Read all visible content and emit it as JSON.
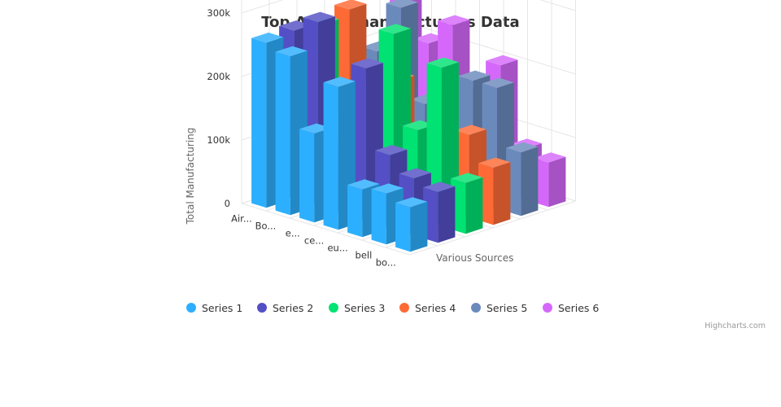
{
  "chart_data": {
    "type": "bar",
    "subtype": "3d-column",
    "title": "Top Airline manufacturers Data",
    "ylabel": "Total Manufacturing",
    "zlabel": "Various Sources",
    "ylim": [
      0,
      300000
    ],
    "yticks": [
      "0",
      "100k",
      "200k",
      "300k"
    ],
    "categories": [
      "Air...",
      "Bo...",
      "e...",
      "ce...",
      "eu...",
      "bell",
      "bo..."
    ],
    "series": [
      {
        "name": "Series 1",
        "color": "#2caffe",
        "values": [
          260000,
          250000,
          140000,
          225000,
          75000,
          80000,
          70000
        ]
      },
      {
        "name": "Series 2",
        "color": "#544fc5",
        "values": [
          265000,
          290000,
          105000,
          240000,
          115000,
          90000,
          80000
        ]
      },
      {
        "name": "Series 3",
        "color": "#00e272",
        "values": [
          260000,
          120000,
          180000,
          280000,
          140000,
          250000,
          80000
        ]
      },
      {
        "name": "Series 4",
        "color": "#fe6a35",
        "values": [
          270000,
          150000,
          180000,
          100000,
          110000,
          130000,
          90000
        ]
      },
      {
        "name": "Series 5",
        "color": "#6b8abc",
        "values": [
          190000,
          270000,
          130000,
          160000,
          190000,
          190000,
          100000
        ]
      },
      {
        "name": "Series 6",
        "color": "#d568fb",
        "values": [
          290000,
          200000,
          240000,
          140000,
          200000,
          80000,
          70000
        ]
      }
    ],
    "legend": "bottom-center",
    "grid": true
  },
  "credits": "Highcharts.com"
}
